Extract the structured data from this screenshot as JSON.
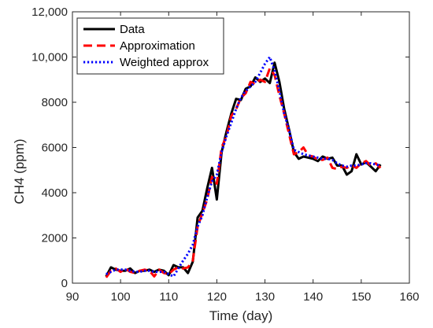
{
  "chart_data": {
    "type": "line",
    "xlabel": "Time (day)",
    "ylabel": "CH4 (ppm)",
    "xlim": [
      90,
      160
    ],
    "ylim": [
      0,
      12000
    ],
    "xticks": [
      90,
      100,
      110,
      120,
      130,
      140,
      150,
      160
    ],
    "yticks": [
      0,
      2000,
      4000,
      6000,
      8000,
      10000,
      12000
    ],
    "ytick_labels": [
      "0",
      "2000",
      "4000",
      "6000",
      "8000",
      "10,000",
      "12,000"
    ],
    "grid": false,
    "legend_position": "top-left",
    "series": [
      {
        "name": "Data",
        "color": "#000000",
        "style": "solid",
        "x": [
          97,
          98,
          99,
          100,
          101,
          102,
          103,
          104,
          105,
          106,
          107,
          108,
          109,
          110,
          111,
          112,
          113,
          114,
          115,
          116,
          117,
          118,
          119,
          120,
          121,
          122,
          123,
          124,
          125,
          126,
          127,
          128,
          129,
          130,
          131,
          132,
          133,
          134,
          135,
          136,
          137,
          138,
          139,
          140,
          141,
          142,
          143,
          144,
          145,
          146,
          147,
          148,
          149,
          150,
          151,
          152,
          153,
          154
        ],
        "y": [
          300,
          700,
          600,
          550,
          550,
          650,
          450,
          550,
          550,
          600,
          500,
          600,
          550,
          350,
          800,
          700,
          700,
          450,
          950,
          2900,
          3200,
          4200,
          5100,
          3700,
          5800,
          6700,
          7500,
          8150,
          8100,
          8600,
          8700,
          9100,
          8900,
          9050,
          8850,
          9750,
          8900,
          7700,
          6800,
          5800,
          5500,
          5600,
          5550,
          5500,
          5400,
          5600,
          5500,
          5550,
          5200,
          5200,
          4800,
          4950,
          5700,
          5250,
          5350,
          5150,
          4950,
          5250
        ]
      },
      {
        "name": "Approximation",
        "color": "#ff0000",
        "style": "dashed",
        "x": [
          97,
          98,
          99,
          100,
          101,
          102,
          103,
          104,
          105,
          106,
          107,
          108,
          109,
          110,
          111,
          112,
          113,
          114,
          115,
          116,
          117,
          118,
          119,
          120,
          121,
          122,
          123,
          124,
          125,
          126,
          127,
          128,
          129,
          130,
          131,
          132,
          133,
          134,
          135,
          136,
          137,
          138,
          139,
          140,
          141,
          142,
          143,
          144,
          145,
          146,
          147,
          148,
          149,
          150,
          151,
          152,
          153,
          154
        ],
        "y": [
          250,
          550,
          650,
          500,
          650,
          500,
          450,
          550,
          600,
          550,
          300,
          600,
          450,
          400,
          600,
          700,
          650,
          700,
          1000,
          2500,
          3100,
          3700,
          4700,
          4400,
          6000,
          6500,
          7400,
          7700,
          8200,
          8400,
          8900,
          8800,
          9000,
          8900,
          9500,
          9200,
          8300,
          7500,
          6600,
          5700,
          5800,
          6000,
          5650,
          5600,
          5450,
          5450,
          5550,
          5100,
          5050,
          5150,
          5100,
          5200,
          5100,
          5300,
          5400,
          5200,
          5300,
          5100
        ]
      },
      {
        "name": "Weighted approx",
        "color": "#0000ff",
        "style": "dotted",
        "x": [
          97,
          98,
          99,
          100,
          101,
          102,
          103,
          104,
          105,
          106,
          107,
          108,
          109,
          110,
          111,
          112,
          113,
          114,
          115,
          116,
          117,
          118,
          119,
          120,
          121,
          122,
          123,
          124,
          125,
          126,
          127,
          128,
          129,
          130,
          131,
          132,
          133,
          134,
          135,
          136,
          137,
          138,
          139,
          140,
          141,
          142,
          143,
          144,
          145,
          146,
          147,
          148,
          149,
          150,
          151,
          152,
          153,
          154
        ],
        "y": [
          400,
          500,
          600,
          600,
          600,
          550,
          500,
          500,
          550,
          550,
          500,
          500,
          500,
          400,
          300,
          650,
          1000,
          1300,
          1700,
          2500,
          3000,
          3800,
          4500,
          4800,
          5800,
          6500,
          7100,
          7700,
          8200,
          8500,
          8700,
          8900,
          9300,
          9700,
          10000,
          9400,
          8500,
          7500,
          6800,
          5900,
          5800,
          5700,
          5650,
          5600,
          5550,
          5500,
          5500,
          5450,
          5300,
          5200,
          5150,
          5200,
          5200,
          5250,
          5300,
          5300,
          5250,
          5200
        ]
      }
    ]
  }
}
